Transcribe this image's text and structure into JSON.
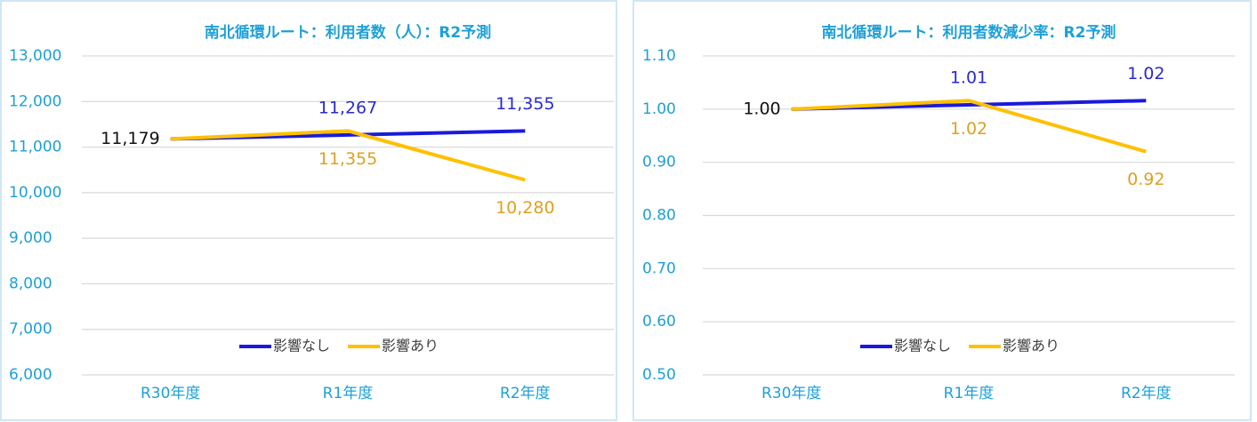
{
  "chart_data": [
    {
      "type": "line",
      "title": "南北循環ルート：利用者数（人）：R2予測",
      "categories": [
        "R30年度",
        "R1年度",
        "R2年度"
      ],
      "series": [
        {
          "name": "影響なし",
          "color": "#1a1adc",
          "values": [
            11179,
            11267,
            11355
          ],
          "value_labels": [
            "11,179",
            "11,267",
            "11,355"
          ],
          "value_label_colors": [
            "#111111",
            "#2a2ad0",
            "#2a2ad0"
          ],
          "label_position": "above"
        },
        {
          "name": "影響あり",
          "color": "#ffc000",
          "values": [
            11179,
            11355,
            10280
          ],
          "value_labels": [
            null,
            "11,355",
            "10,280"
          ],
          "value_label_colors": [
            null,
            "#e0a020",
            "#e0a020"
          ],
          "label_position": "below"
        }
      ],
      "ylim": [
        6000,
        13000
      ],
      "yticks": [
        {
          "value": 6000,
          "label": "6,000"
        },
        {
          "value": 7000,
          "label": "7,000"
        },
        {
          "value": 8000,
          "label": "8,000"
        },
        {
          "value": 9000,
          "label": "9,000"
        },
        {
          "value": 10000,
          "label": "10,000"
        },
        {
          "value": 11000,
          "label": "11,000"
        },
        {
          "value": 12000,
          "label": "12,000"
        },
        {
          "value": 13000,
          "label": "13,000"
        }
      ],
      "grid": true,
      "legend": "bottom"
    },
    {
      "type": "line",
      "title": "南北循環ルート：利用者数減少率：R2予測",
      "categories": [
        "R30年度",
        "R1年度",
        "R2年度"
      ],
      "series": [
        {
          "name": "影響なし",
          "color": "#1a1adc",
          "values": [
            1.0,
            1.008,
            1.016
          ],
          "value_labels": [
            "1.00",
            "1.01",
            "1.02"
          ],
          "value_label_colors": [
            "#111111",
            "#2a2ad0",
            "#2a2ad0"
          ],
          "label_position": "above"
        },
        {
          "name": "影響あり",
          "color": "#ffc000",
          "values": [
            1.0,
            1.016,
            0.92
          ],
          "value_labels": [
            null,
            "1.02",
            "0.92"
          ],
          "value_label_colors": [
            null,
            "#e0a020",
            "#e0a020"
          ],
          "label_position": "below"
        }
      ],
      "ylim": [
        0.5,
        1.1
      ],
      "yticks": [
        {
          "value": 0.5,
          "label": "0.50"
        },
        {
          "value": 0.6,
          "label": "0.60"
        },
        {
          "value": 0.7,
          "label": "0.70"
        },
        {
          "value": 0.8,
          "label": "0.80"
        },
        {
          "value": 0.9,
          "label": "0.90"
        },
        {
          "value": 1.0,
          "label": "1.00"
        },
        {
          "value": 1.1,
          "label": "1.10"
        }
      ],
      "grid": true,
      "legend": "bottom"
    }
  ]
}
